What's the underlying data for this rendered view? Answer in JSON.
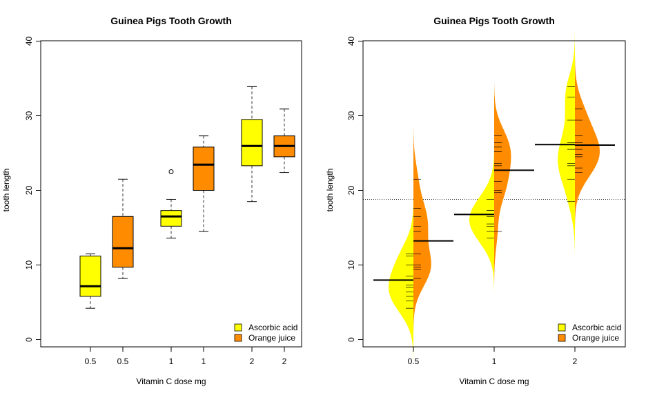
{
  "colors": {
    "ascorbic": "#ffff00",
    "orange": "#ff8c00"
  },
  "chart_data": [
    {
      "type": "boxplot",
      "title": "Guinea Pigs  Tooth Growth",
      "xlabel": "Vitamin C dose mg",
      "ylabel": "tooth length",
      "ylim": [
        0,
        40
      ],
      "yticks": [
        "0",
        "10",
        "20",
        "30",
        "40"
      ],
      "categories": [
        "0.5",
        "0.5",
        "1",
        "1",
        "2",
        "2"
      ],
      "legend": {
        "position": "bottom-right",
        "entries": [
          "Ascorbic acid",
          "Orange juice"
        ]
      },
      "boxes": [
        {
          "x": "0.5",
          "series": "Ascorbic acid",
          "min": 4.2,
          "q1": 5.8,
          "median": 7.15,
          "q3": 11.2,
          "max": 11.5,
          "outliers": []
        },
        {
          "x": "0.5",
          "series": "Orange juice",
          "min": 8.2,
          "q1": 9.7,
          "median": 12.25,
          "q3": 16.5,
          "max": 21.5,
          "outliers": []
        },
        {
          "x": "1",
          "series": "Ascorbic acid",
          "min": 13.6,
          "q1": 15.2,
          "median": 16.5,
          "q3": 17.3,
          "max": 18.8,
          "outliers": [
            22.5
          ]
        },
        {
          "x": "1",
          "series": "Orange juice",
          "min": 14.5,
          "q1": 20.0,
          "median": 23.45,
          "q3": 25.8,
          "max": 27.3,
          "outliers": []
        },
        {
          "x": "2",
          "series": "Ascorbic acid",
          "min": 18.5,
          "q1": 23.3,
          "median": 25.95,
          "q3": 29.5,
          "max": 33.9,
          "outliers": []
        },
        {
          "x": "2",
          "series": "Orange juice",
          "min": 22.4,
          "q1": 24.5,
          "median": 25.95,
          "q3": 27.3,
          "max": 30.9,
          "outliers": []
        }
      ]
    },
    {
      "type": "beanplot",
      "title": "Guinea Pigs  Tooth Growth",
      "xlabel": "Vitamin C dose mg",
      "ylabel": "tooth length",
      "ylim": [
        0,
        40
      ],
      "yticks": [
        "0",
        "10",
        "20",
        "30",
        "40"
      ],
      "categories": [
        "0.5",
        "1",
        "2"
      ],
      "overall_mean": 18.8,
      "legend": {
        "position": "bottom-right",
        "entries": [
          "Ascorbic acid",
          "Orange juice"
        ]
      },
      "beans": [
        {
          "x": "0.5",
          "ascorbic_mean": 7.98,
          "orange_mean": 13.23,
          "ascorbic_values": [
            4.2,
            5.2,
            5.8,
            6.4,
            7.0,
            7.3,
            8.5,
            10.0,
            11.2,
            11.5
          ],
          "orange_values": [
            8.2,
            9.4,
            9.7,
            10.0,
            11.5,
            14.5,
            15.2,
            16.5,
            17.6,
            21.5
          ]
        },
        {
          "x": "1",
          "ascorbic_mean": 16.77,
          "orange_mean": 22.7,
          "ascorbic_values": [
            13.6,
            14.5,
            15.2,
            15.5,
            16.5,
            17.3,
            17.3,
            18.8
          ],
          "orange_values": [
            14.5,
            19.7,
            20.0,
            21.2,
            23.3,
            23.6,
            25.2,
            25.8,
            26.4,
            27.3
          ]
        },
        {
          "x": "2",
          "ascorbic_mean": 26.14,
          "orange_mean": 26.06,
          "ascorbic_values": [
            18.5,
            21.5,
            23.3,
            23.6,
            25.5,
            26.4,
            29.4,
            32.5,
            33.9
          ],
          "orange_values": [
            22.4,
            23.0,
            24.5,
            24.8,
            25.5,
            26.4,
            27.3,
            29.4,
            30.9
          ]
        }
      ]
    }
  ]
}
